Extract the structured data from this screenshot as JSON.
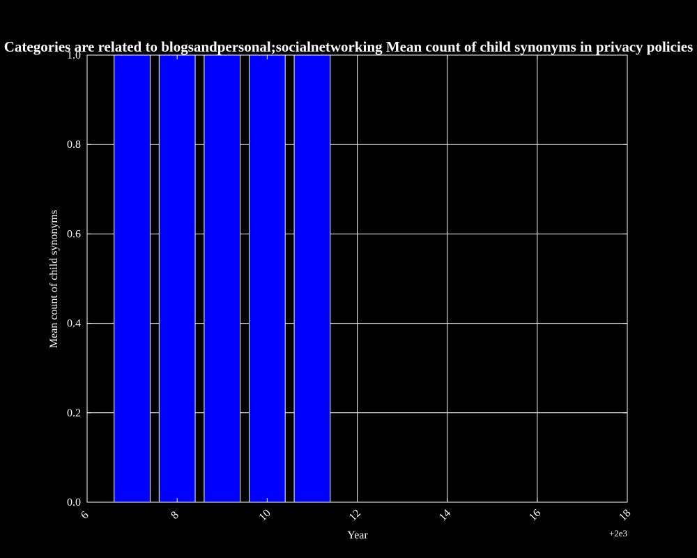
{
  "chart_data": {
    "type": "bar",
    "title": "Categories are related to blogsandpersonal;socialnetworking Mean count of child synonyms in privacy policies",
    "xlabel": "Year",
    "ylabel": "Mean count of child synonyms",
    "x_offset_label": "+2e3",
    "x": [
      7,
      8,
      9,
      10,
      11
    ],
    "values": [
      1.0,
      1.0,
      1.0,
      1.0,
      1.0
    ],
    "bar_width": 0.8,
    "xlim": [
      6,
      18
    ],
    "ylim": [
      0.0,
      1.0
    ],
    "x_ticks": [
      6,
      8,
      10,
      12,
      14,
      16,
      18
    ],
    "x_tick_labels": [
      "6",
      "8",
      "10",
      "12",
      "14",
      "16",
      "18"
    ],
    "y_ticks": [
      0.0,
      0.2,
      0.4,
      0.6,
      0.8,
      1.0
    ],
    "y_tick_labels": [
      "0.0",
      "0.2",
      "0.4",
      "0.6",
      "0.8",
      "1.0"
    ],
    "grid": true,
    "colors": {
      "background": "#000000",
      "bar_fill": "#0000ff",
      "bar_edge": "#ffffff",
      "grid": "#ffffff",
      "axes": "#ffffff",
      "text": "#ffffff"
    }
  }
}
